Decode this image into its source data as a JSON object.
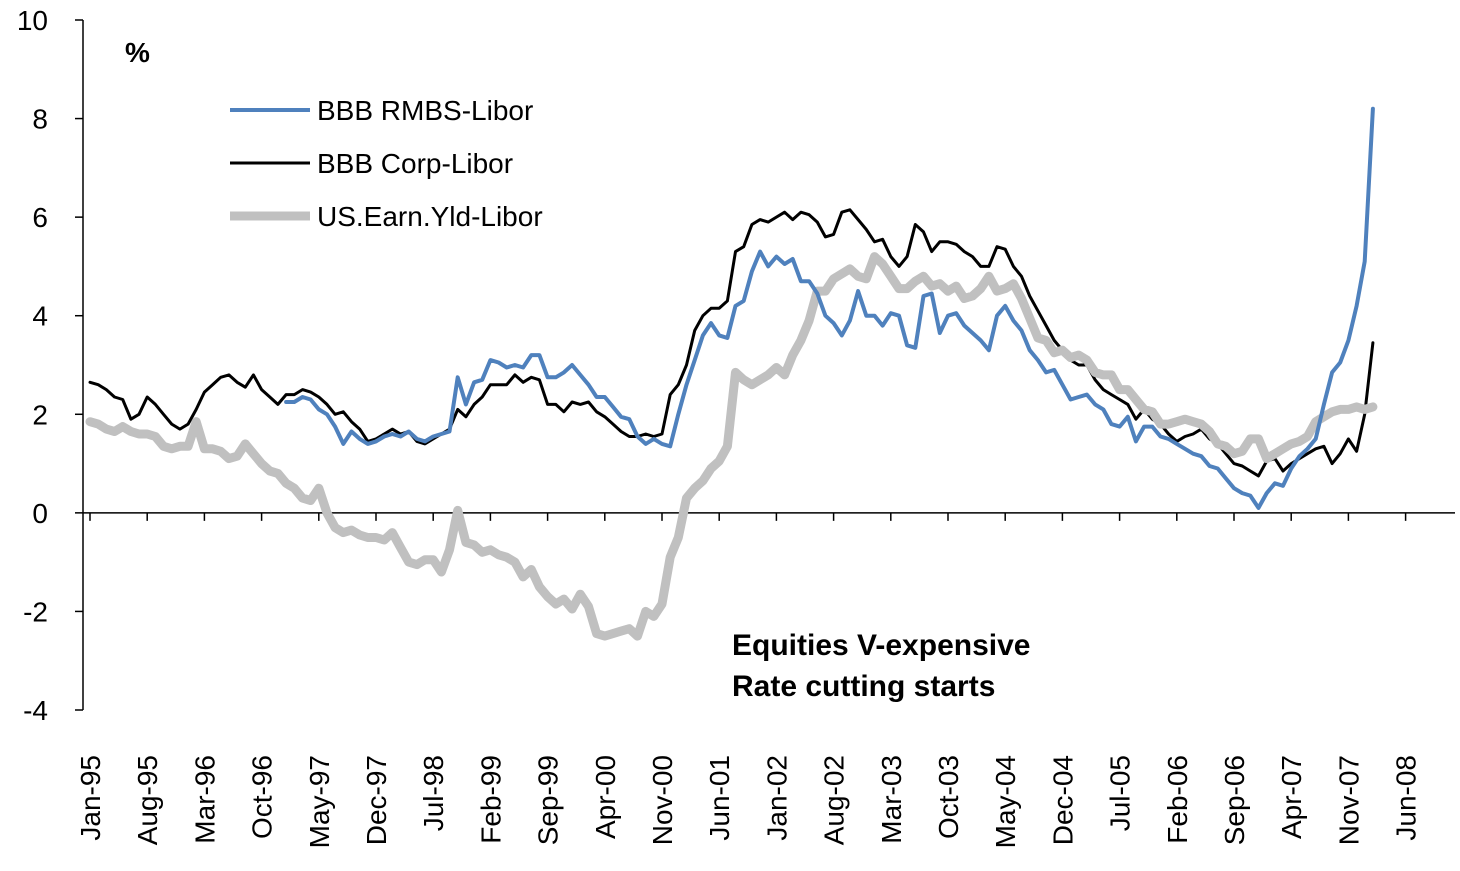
{
  "chart_data": {
    "type": "line",
    "y_label": "%",
    "annotations": [
      "Equities V-expensive",
      "Rate cutting starts"
    ],
    "legend": "upper left",
    "grid": false,
    "ylim": [
      -4,
      10
    ],
    "yticks": [
      -4,
      -2,
      0,
      2,
      4,
      6,
      8,
      10
    ],
    "categories": [
      "Jan-95",
      null,
      null,
      null,
      null,
      null,
      null,
      "Aug-95",
      null,
      null,
      null,
      null,
      null,
      null,
      "Mar-96",
      null,
      null,
      null,
      null,
      null,
      null,
      "Oct-96",
      null,
      null,
      null,
      null,
      null,
      null,
      "May-97",
      null,
      null,
      null,
      null,
      null,
      null,
      "Dec-97",
      null,
      null,
      null,
      null,
      null,
      null,
      "Jul-98",
      null,
      null,
      null,
      null,
      null,
      null,
      "Feb-99",
      null,
      null,
      null,
      null,
      null,
      null,
      "Sep-99",
      null,
      null,
      null,
      null,
      null,
      null,
      "Apr-00",
      null,
      null,
      null,
      null,
      null,
      null,
      "Nov-00",
      null,
      null,
      null,
      null,
      null,
      null,
      "Jun-01",
      null,
      null,
      null,
      null,
      null,
      null,
      "Jan-02",
      null,
      null,
      null,
      null,
      null,
      null,
      "Aug-02",
      null,
      null,
      null,
      null,
      null,
      null,
      "Mar-03",
      null,
      null,
      null,
      null,
      null,
      null,
      "Oct-03",
      null,
      null,
      null,
      null,
      null,
      null,
      "May-04",
      null,
      null,
      null,
      null,
      null,
      null,
      "Dec-04",
      null,
      null,
      null,
      null,
      null,
      null,
      "Jul-05",
      null,
      null,
      null,
      null,
      null,
      null,
      "Feb-06",
      null,
      null,
      null,
      null,
      null,
      null,
      "Sep-06",
      null,
      null,
      null,
      null,
      null,
      null,
      "Apr-07",
      null,
      null,
      null,
      null,
      null,
      null,
      "Nov-07",
      null,
      null,
      null,
      null,
      null,
      null,
      "Jun-08"
    ],
    "series": [
      {
        "name": "BBB RMBS-Libor",
        "color": "#4f81bd",
        "width": 4,
        "values": [
          null,
          null,
          null,
          null,
          null,
          null,
          null,
          null,
          null,
          null,
          null,
          null,
          null,
          null,
          null,
          null,
          null,
          null,
          null,
          null,
          null,
          null,
          null,
          null,
          2.25,
          2.25,
          2.35,
          2.3,
          2.1,
          2.0,
          1.75,
          1.4,
          1.65,
          1.5,
          1.4,
          1.45,
          1.55,
          1.6,
          1.55,
          1.65,
          1.5,
          1.45,
          1.55,
          1.6,
          1.65,
          2.75,
          2.2,
          2.65,
          2.7,
          3.1,
          3.05,
          2.95,
          3.0,
          2.95,
          3.2,
          3.2,
          2.75,
          2.75,
          2.85,
          3.0,
          2.8,
          2.6,
          2.35,
          2.35,
          2.15,
          1.95,
          1.9,
          1.55,
          1.4,
          1.5,
          1.4,
          1.35,
          2.0,
          2.6,
          3.1,
          3.6,
          3.85,
          3.6,
          3.55,
          4.2,
          4.3,
          4.9,
          5.3,
          5.0,
          5.2,
          5.05,
          5.15,
          4.7,
          4.7,
          4.45,
          4.0,
          3.85,
          3.6,
          3.9,
          4.5,
          4.0,
          4.0,
          3.8,
          4.05,
          4.0,
          3.4,
          3.35,
          4.4,
          4.45,
          3.65,
          4.0,
          4.05,
          3.8,
          3.65,
          3.5,
          3.3,
          4.0,
          4.2,
          3.9,
          3.7,
          3.3,
          3.1,
          2.85,
          2.9,
          2.6,
          2.3,
          2.35,
          2.4,
          2.2,
          2.1,
          1.8,
          1.75,
          1.95,
          1.45,
          1.75,
          1.75,
          1.55,
          1.5,
          1.4,
          1.3,
          1.2,
          1.15,
          0.95,
          0.9,
          0.7,
          0.5,
          0.4,
          0.35,
          0.1,
          0.4,
          0.6,
          0.55,
          0.9,
          1.15,
          1.3,
          1.5,
          2.2,
          2.85,
          3.05,
          3.5,
          4.2,
          5.1,
          8.2,
          null,
          null,
          null,
          null
        ]
      },
      {
        "name": "BBB Corp-Libor",
        "color": "#000000",
        "width": 3,
        "values": [
          2.65,
          2.6,
          2.5,
          2.35,
          2.3,
          1.9,
          2.0,
          2.35,
          2.2,
          2.0,
          1.8,
          1.7,
          1.8,
          2.1,
          2.45,
          2.6,
          2.75,
          2.8,
          2.65,
          2.55,
          2.8,
          2.5,
          2.35,
          2.2,
          2.4,
          2.4,
          2.5,
          2.45,
          2.35,
          2.2,
          2.0,
          2.05,
          1.85,
          1.7,
          1.45,
          1.5,
          1.6,
          1.7,
          1.6,
          1.65,
          1.45,
          1.4,
          1.5,
          1.6,
          1.7,
          2.1,
          1.95,
          2.2,
          2.35,
          2.6,
          2.6,
          2.6,
          2.8,
          2.65,
          2.75,
          2.7,
          2.2,
          2.2,
          2.05,
          2.25,
          2.2,
          2.25,
          2.05,
          1.95,
          1.8,
          1.65,
          1.55,
          1.55,
          1.6,
          1.55,
          1.6,
          2.4,
          2.6,
          3.0,
          3.7,
          4.0,
          4.15,
          4.15,
          4.3,
          5.3,
          5.4,
          5.85,
          5.95,
          5.9,
          6.0,
          6.1,
          5.95,
          6.1,
          6.05,
          5.9,
          5.6,
          5.65,
          6.1,
          6.15,
          5.95,
          5.75,
          5.5,
          5.55,
          5.2,
          5.0,
          5.2,
          5.85,
          5.7,
          5.3,
          5.5,
          5.5,
          5.45,
          5.3,
          5.2,
          5.0,
          5.0,
          5.4,
          5.35,
          5.0,
          4.8,
          4.4,
          4.1,
          3.8,
          3.5,
          3.3,
          3.1,
          3.0,
          3.0,
          2.7,
          2.5,
          2.4,
          2.3,
          2.2,
          1.9,
          2.1,
          1.9,
          1.8,
          1.6,
          1.45,
          1.55,
          1.6,
          1.7,
          1.5,
          1.4,
          1.2,
          1.0,
          0.95,
          0.85,
          0.75,
          1.05,
          1.1,
          0.85,
          1.0,
          1.1,
          1.2,
          1.3,
          1.35,
          1.0,
          1.2,
          1.5,
          1.25,
          2.0,
          3.45,
          null,
          null,
          null,
          null
        ]
      },
      {
        "name": "US.Earn.Yld-Libor",
        "color": "#c0c0c0",
        "width": 9,
        "values": [
          1.85,
          1.8,
          1.7,
          1.65,
          1.75,
          1.65,
          1.6,
          1.6,
          1.55,
          1.35,
          1.3,
          1.35,
          1.35,
          1.85,
          1.3,
          1.3,
          1.25,
          1.1,
          1.15,
          1.4,
          1.2,
          1.0,
          0.85,
          0.8,
          0.6,
          0.5,
          0.3,
          0.25,
          0.5,
          0.0,
          -0.3,
          -0.4,
          -0.35,
          -0.45,
          -0.5,
          -0.5,
          -0.55,
          -0.4,
          -0.7,
          -1.0,
          -1.05,
          -0.95,
          -0.95,
          -1.2,
          -0.75,
          0.05,
          -0.6,
          -0.65,
          -0.8,
          -0.75,
          -0.85,
          -0.9,
          -1.0,
          -1.3,
          -1.15,
          -1.5,
          -1.7,
          -1.85,
          -1.75,
          -1.95,
          -1.65,
          -1.9,
          -2.45,
          -2.5,
          -2.45,
          -2.4,
          -2.35,
          -2.5,
          -2.0,
          -2.1,
          -1.85,
          -0.9,
          -0.5,
          0.3,
          0.5,
          0.65,
          0.9,
          1.05,
          1.35,
          2.85,
          2.7,
          2.6,
          2.7,
          2.8,
          2.95,
          2.8,
          3.2,
          3.5,
          3.9,
          4.5,
          4.5,
          4.75,
          4.85,
          4.95,
          4.8,
          4.75,
          5.2,
          5.05,
          4.8,
          4.55,
          4.55,
          4.7,
          4.8,
          4.6,
          4.65,
          4.5,
          4.6,
          4.35,
          4.4,
          4.55,
          4.8,
          4.5,
          4.55,
          4.65,
          4.35,
          3.95,
          3.55,
          3.5,
          3.25,
          3.3,
          3.15,
          3.2,
          3.1,
          2.85,
          2.8,
          2.8,
          2.5,
          2.5,
          2.3,
          2.1,
          2.05,
          1.8,
          1.8,
          1.85,
          1.9,
          1.85,
          1.8,
          1.65,
          1.4,
          1.35,
          1.2,
          1.25,
          1.5,
          1.5,
          1.1,
          1.2,
          1.3,
          1.4,
          1.45,
          1.55,
          1.85,
          1.95,
          2.05,
          2.1,
          2.1,
          2.15,
          2.1,
          2.15,
          null,
          null,
          null,
          null
        ]
      }
    ]
  }
}
